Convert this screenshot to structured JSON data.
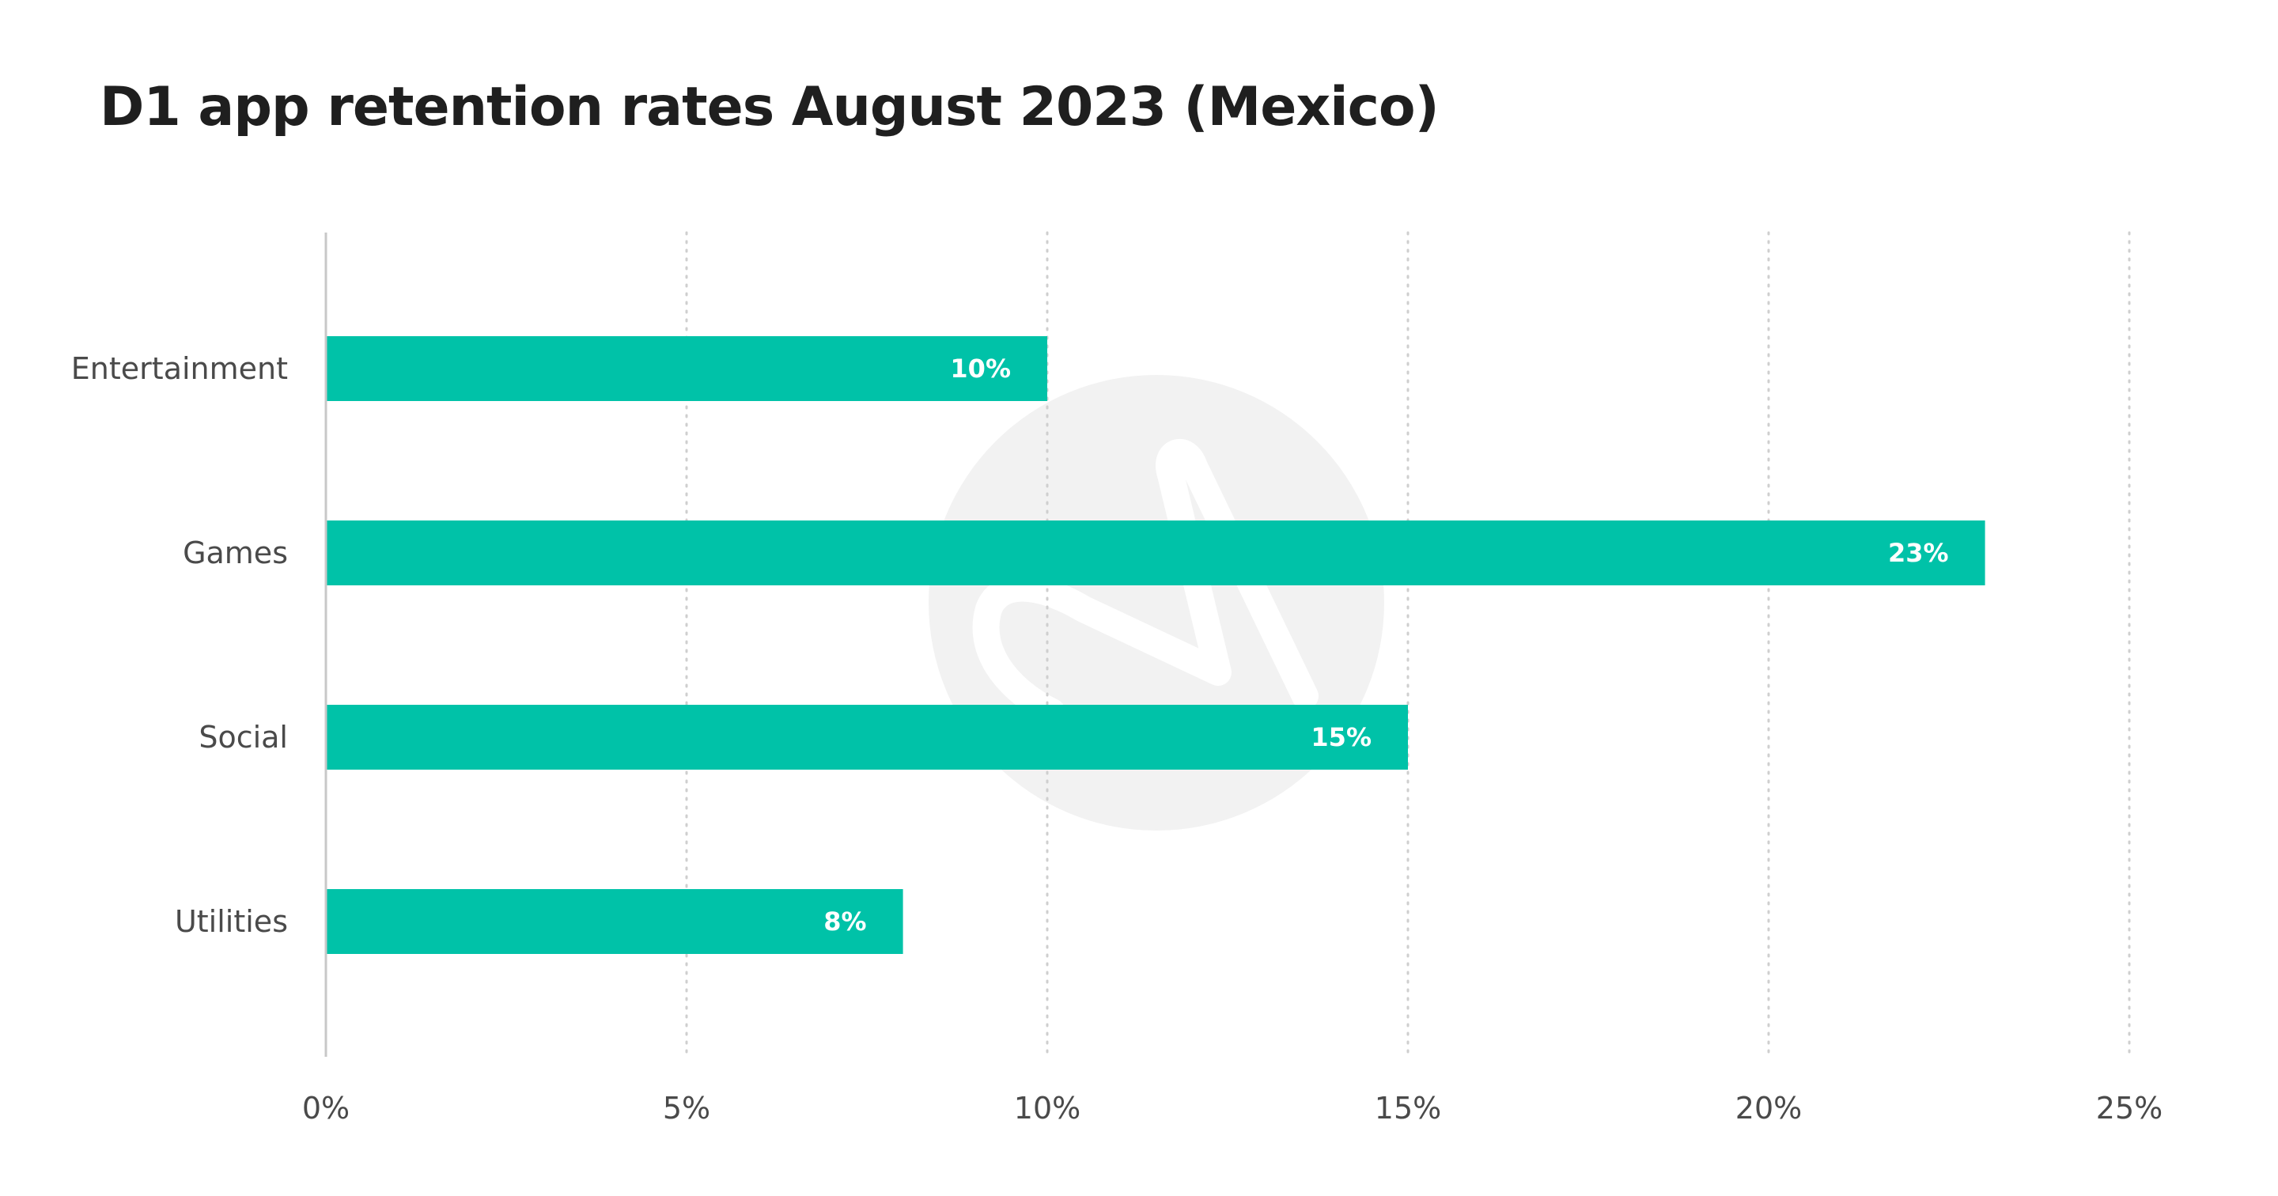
{
  "chart_data": {
    "type": "bar",
    "orientation": "horizontal",
    "title": "D1 app retention rates August 2023 (Mexico)",
    "categories": [
      "Entertainment",
      "Games",
      "Social",
      "Utilities"
    ],
    "values": [
      10,
      23,
      15,
      8
    ],
    "value_labels": [
      "10%",
      "23%",
      "15%",
      "8%"
    ],
    "xlim": [
      0,
      25
    ],
    "x_ticks": [
      0,
      5,
      10,
      15,
      20,
      25
    ],
    "x_tick_labels": [
      "0%",
      "5%",
      "10%",
      "15%",
      "20%",
      "25%"
    ],
    "xlabel": "",
    "ylabel": "",
    "grid": "vertical dotted",
    "legend": "none",
    "colors": {
      "bar": "#00c2a8",
      "bar_label": "#ffffff",
      "axis": "#c8c8c8",
      "grid": "#cfcfcf",
      "watermark": "#f2f2f2",
      "title": "#1f1f1f",
      "text": "#4a4a4a"
    }
  }
}
